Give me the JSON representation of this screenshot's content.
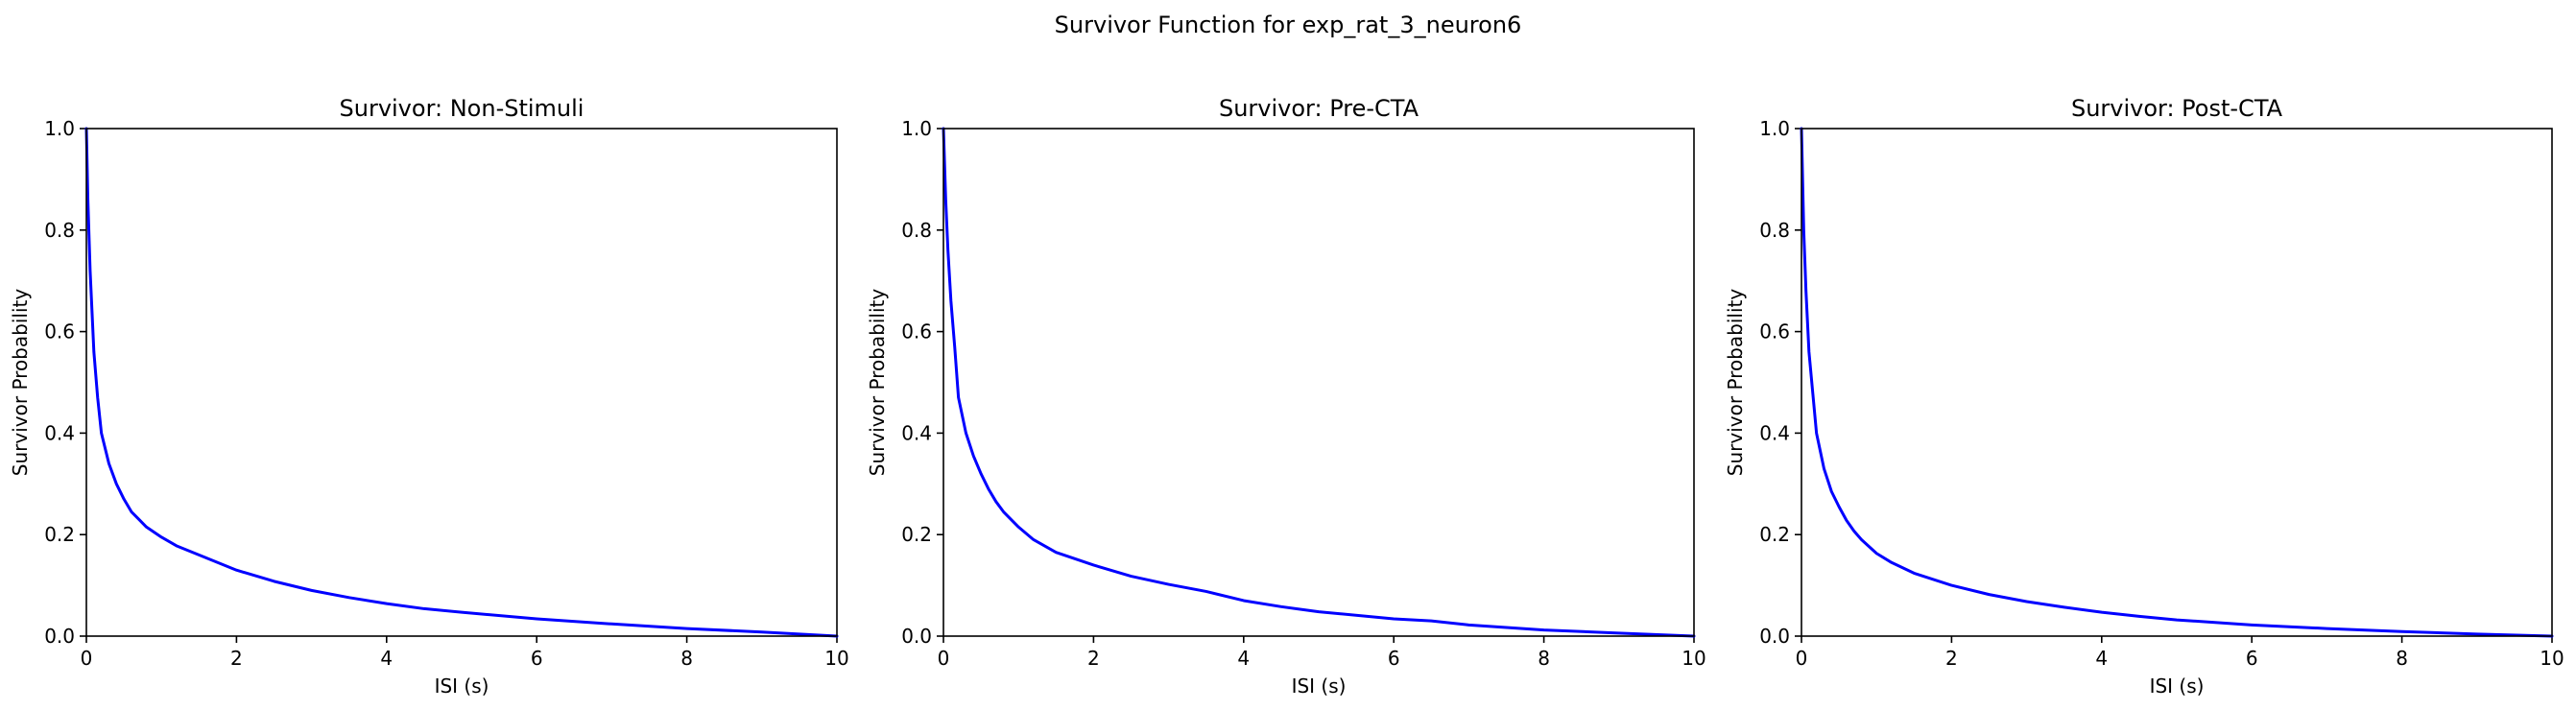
{
  "figure": {
    "suptitle": "Survivor Function for exp_rat_3_neuron6"
  },
  "chart_data": [
    {
      "type": "line",
      "title": "Survivor: Non-Stimuli",
      "xlabel": "ISI (s)",
      "ylabel": "Survivor Probability",
      "xlim": [
        0,
        10
      ],
      "ylim": [
        0,
        1
      ],
      "xticks": [
        "0",
        "2",
        "4",
        "6",
        "8",
        "10"
      ],
      "yticks": [
        "0.0",
        "0.2",
        "0.4",
        "0.6",
        "0.8",
        "1.0"
      ],
      "grid": false,
      "color": "#0000ff",
      "series": [
        {
          "x": [
            0,
            0.02,
            0.05,
            0.1,
            0.15,
            0.2,
            0.3,
            0.4,
            0.5,
            0.6,
            0.7,
            0.8,
            1.0,
            1.2,
            1.5,
            2.0,
            2.5,
            3.0,
            3.5,
            4.0,
            4.5,
            5.0,
            6.0,
            7.0,
            8.0,
            9.0,
            10.0
          ],
          "y": [
            1.0,
            0.86,
            0.72,
            0.56,
            0.47,
            0.4,
            0.34,
            0.3,
            0.27,
            0.245,
            0.23,
            0.215,
            0.195,
            0.178,
            0.16,
            0.13,
            0.108,
            0.09,
            0.076,
            0.064,
            0.054,
            0.047,
            0.034,
            0.024,
            0.015,
            0.008,
            0.0
          ]
        }
      ]
    },
    {
      "type": "line",
      "title": "Survivor: Pre-CTA",
      "xlabel": "ISI (s)",
      "ylabel": "Survivor Probability",
      "xlim": [
        0,
        10
      ],
      "ylim": [
        0,
        1
      ],
      "xticks": [
        "0",
        "2",
        "4",
        "6",
        "8",
        "10"
      ],
      "yticks": [
        "0.0",
        "0.2",
        "0.4",
        "0.6",
        "0.8",
        "1.0"
      ],
      "grid": false,
      "color": "#0000ff",
      "series": [
        {
          "x": [
            0,
            0.03,
            0.06,
            0.1,
            0.15,
            0.2,
            0.3,
            0.4,
            0.5,
            0.6,
            0.7,
            0.8,
            1.0,
            1.2,
            1.5,
            2.0,
            2.5,
            3.0,
            3.5,
            4.0,
            4.5,
            5.0,
            6.0,
            6.5,
            7.0,
            8.0,
            9.0,
            10.0
          ],
          "y": [
            1.0,
            0.86,
            0.76,
            0.66,
            0.57,
            0.47,
            0.4,
            0.355,
            0.32,
            0.29,
            0.265,
            0.245,
            0.215,
            0.19,
            0.165,
            0.14,
            0.118,
            0.102,
            0.088,
            0.07,
            0.058,
            0.048,
            0.034,
            0.03,
            0.022,
            0.012,
            0.006,
            0.0
          ]
        }
      ]
    },
    {
      "type": "line",
      "title": "Survivor: Post-CTA",
      "xlabel": "ISI (s)",
      "ylabel": "Survivor Probability",
      "xlim": [
        0,
        10
      ],
      "ylim": [
        0,
        1
      ],
      "xticks": [
        "0",
        "2",
        "4",
        "6",
        "8",
        "10"
      ],
      "yticks": [
        "0.0",
        "0.2",
        "0.4",
        "0.6",
        "0.8",
        "1.0"
      ],
      "grid": false,
      "color": "#0000ff",
      "series": [
        {
          "x": [
            0,
            0.03,
            0.06,
            0.1,
            0.15,
            0.2,
            0.3,
            0.4,
            0.5,
            0.6,
            0.7,
            0.8,
            1.0,
            1.2,
            1.5,
            2.0,
            2.5,
            3.0,
            3.5,
            4.0,
            4.5,
            5.0,
            6.0,
            7.0,
            8.0,
            9.0,
            10.0
          ],
          "y": [
            1.0,
            0.8,
            0.68,
            0.56,
            0.48,
            0.4,
            0.33,
            0.285,
            0.255,
            0.228,
            0.207,
            0.19,
            0.163,
            0.145,
            0.124,
            0.1,
            0.082,
            0.068,
            0.057,
            0.047,
            0.039,
            0.032,
            0.022,
            0.015,
            0.009,
            0.004,
            0.0
          ]
        }
      ]
    }
  ]
}
